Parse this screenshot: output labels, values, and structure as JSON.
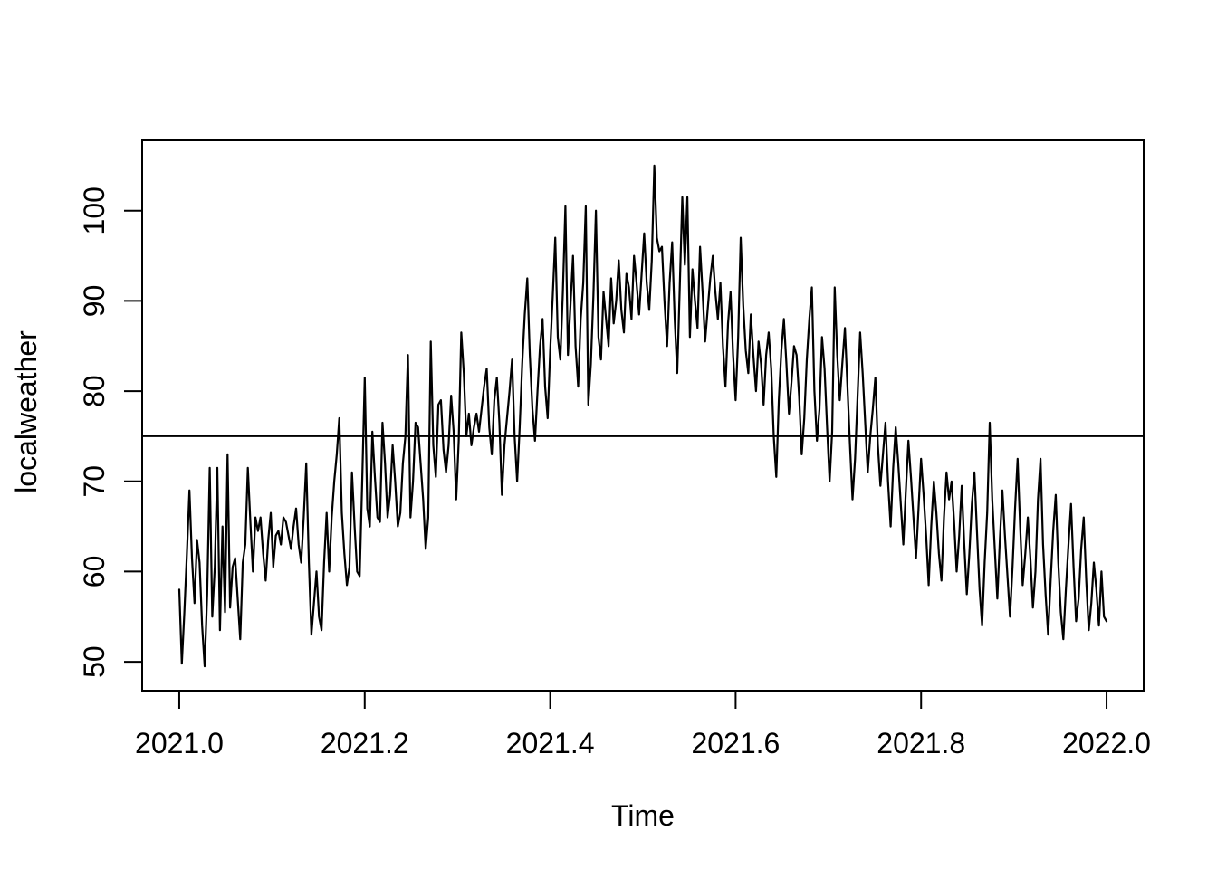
{
  "chart_data": {
    "type": "line",
    "title": "",
    "xlabel": "Time",
    "ylabel": "localweather",
    "series_name": "localweather",
    "line_color": "#000000",
    "background_color": "#ffffff",
    "grid": false,
    "legend": "none",
    "frame_box": true,
    "reference_line_y": 75,
    "xlim": [
      2020.96,
      2022.04
    ],
    "ylim": [
      46.8,
      107.8
    ],
    "x_ticks": [
      2021.0,
      2021.2,
      2021.4,
      2021.6,
      2021.8,
      2022.0
    ],
    "x_tick_labels": [
      "2021.0",
      "2021.2",
      "2021.4",
      "2021.6",
      "2021.8",
      "2022.0"
    ],
    "y_ticks": [
      50,
      60,
      70,
      80,
      90,
      100
    ],
    "y_tick_labels": [
      "50",
      "60",
      "70",
      "80",
      "90",
      "100"
    ],
    "x_start": 2021.0,
    "x_step": 0.00273972602739726,
    "values": [
      58,
      49.8,
      55.5,
      62,
      69,
      61.5,
      56.5,
      63.5,
      61,
      54,
      49.5,
      57.5,
      71.5,
      55,
      60.5,
      71.5,
      53.5,
      65,
      55.5,
      73,
      56,
      60.5,
      61.5,
      57,
      52.5,
      61,
      63,
      71.5,
      65.5,
      60,
      66,
      64.5,
      66,
      62,
      59,
      63.5,
      66.5,
      60.5,
      64,
      64.5,
      63,
      66,
      65.5,
      64,
      62.5,
      65,
      67,
      63,
      61,
      66,
      72,
      61,
      53,
      56.5,
      60,
      55,
      53.5,
      61,
      66.5,
      60,
      66,
      70,
      73,
      77,
      66.5,
      62,
      58.5,
      60.5,
      71,
      65,
      60,
      59.5,
      70,
      81.5,
      67,
      65,
      75.5,
      70.5,
      66,
      65.5,
      76.5,
      72,
      66,
      68.5,
      74,
      70,
      65,
      66.5,
      72,
      75,
      84,
      66,
      70,
      76.5,
      76,
      72,
      68,
      62.5,
      66,
      85.5,
      74,
      70.5,
      78.5,
      79,
      73.5,
      71,
      74,
      79.5,
      75.5,
      68,
      74.5,
      86.5,
      82,
      75,
      77.5,
      74,
      76,
      77.5,
      75.5,
      78,
      80.5,
      82.5,
      76,
      73,
      79,
      81.5,
      76.5,
      68.5,
      74,
      77,
      80,
      83.5,
      75,
      70,
      76,
      83,
      88.5,
      92.5,
      84,
      78,
      74.5,
      80,
      85,
      88,
      80.5,
      77,
      84.5,
      90.5,
      97,
      86,
      83.5,
      91,
      100.5,
      84,
      89.5,
      95,
      85,
      80.5,
      88,
      92,
      100.5,
      78.5,
      83,
      90.5,
      100,
      86,
      83.5,
      91,
      88,
      85,
      92.5,
      87.5,
      90,
      94.5,
      89,
      86.5,
      93,
      91.5,
      88,
      95,
      92,
      88.5,
      93,
      97.5,
      92,
      89,
      94.5,
      105,
      97,
      95.5,
      96,
      90,
      85,
      92,
      96.5,
      88,
      82,
      91.5,
      101.5,
      94,
      101.5,
      86,
      93.5,
      90,
      87,
      96,
      91,
      85.5,
      89,
      92.5,
      95,
      91,
      88,
      92,
      85,
      80.5,
      87.5,
      91,
      84,
      79,
      86,
      97,
      89.5,
      84.5,
      82,
      88.5,
      84,
      80,
      85.5,
      83,
      78.5,
      84,
      86.5,
      82.5,
      75,
      70.5,
      79,
      84.5,
      88,
      83,
      77.5,
      81,
      85,
      84,
      79.5,
      73,
      77,
      83.5,
      88,
      91.5,
      80,
      74.5,
      78,
      86,
      82.5,
      76,
      70,
      75.5,
      91.5,
      84,
      79,
      83,
      87,
      80.5,
      74,
      68,
      72.5,
      79.5,
      86.5,
      82,
      76.5,
      71,
      75,
      78,
      81.5,
      74,
      69.5,
      73,
      76.5,
      70,
      65,
      71.5,
      76,
      72,
      67.5,
      63,
      69,
      74.5,
      70.5,
      66,
      61.5,
      67,
      72.5,
      68.5,
      64,
      58.5,
      65,
      70,
      66.5,
      62,
      59,
      66,
      71,
      68,
      70,
      65.5,
      60,
      64,
      69.5,
      63,
      57.5,
      62,
      67.5,
      71,
      64.5,
      58,
      54,
      61,
      66.5,
      76.5,
      68,
      62.5,
      57,
      63.5,
      69,
      64,
      59.5,
      55,
      60.5,
      67,
      72.5,
      65,
      58.5,
      62,
      66,
      61.5,
      56,
      60,
      68,
      72.5,
      63,
      57.5,
      53,
      59,
      64.5,
      68.5,
      61,
      55.5,
      52.5,
      58,
      63,
      67.5,
      60.5,
      54.5,
      57,
      62.5,
      66,
      59,
      53.5,
      56.5,
      61,
      58,
      54,
      60,
      55,
      54.5
    ]
  }
}
